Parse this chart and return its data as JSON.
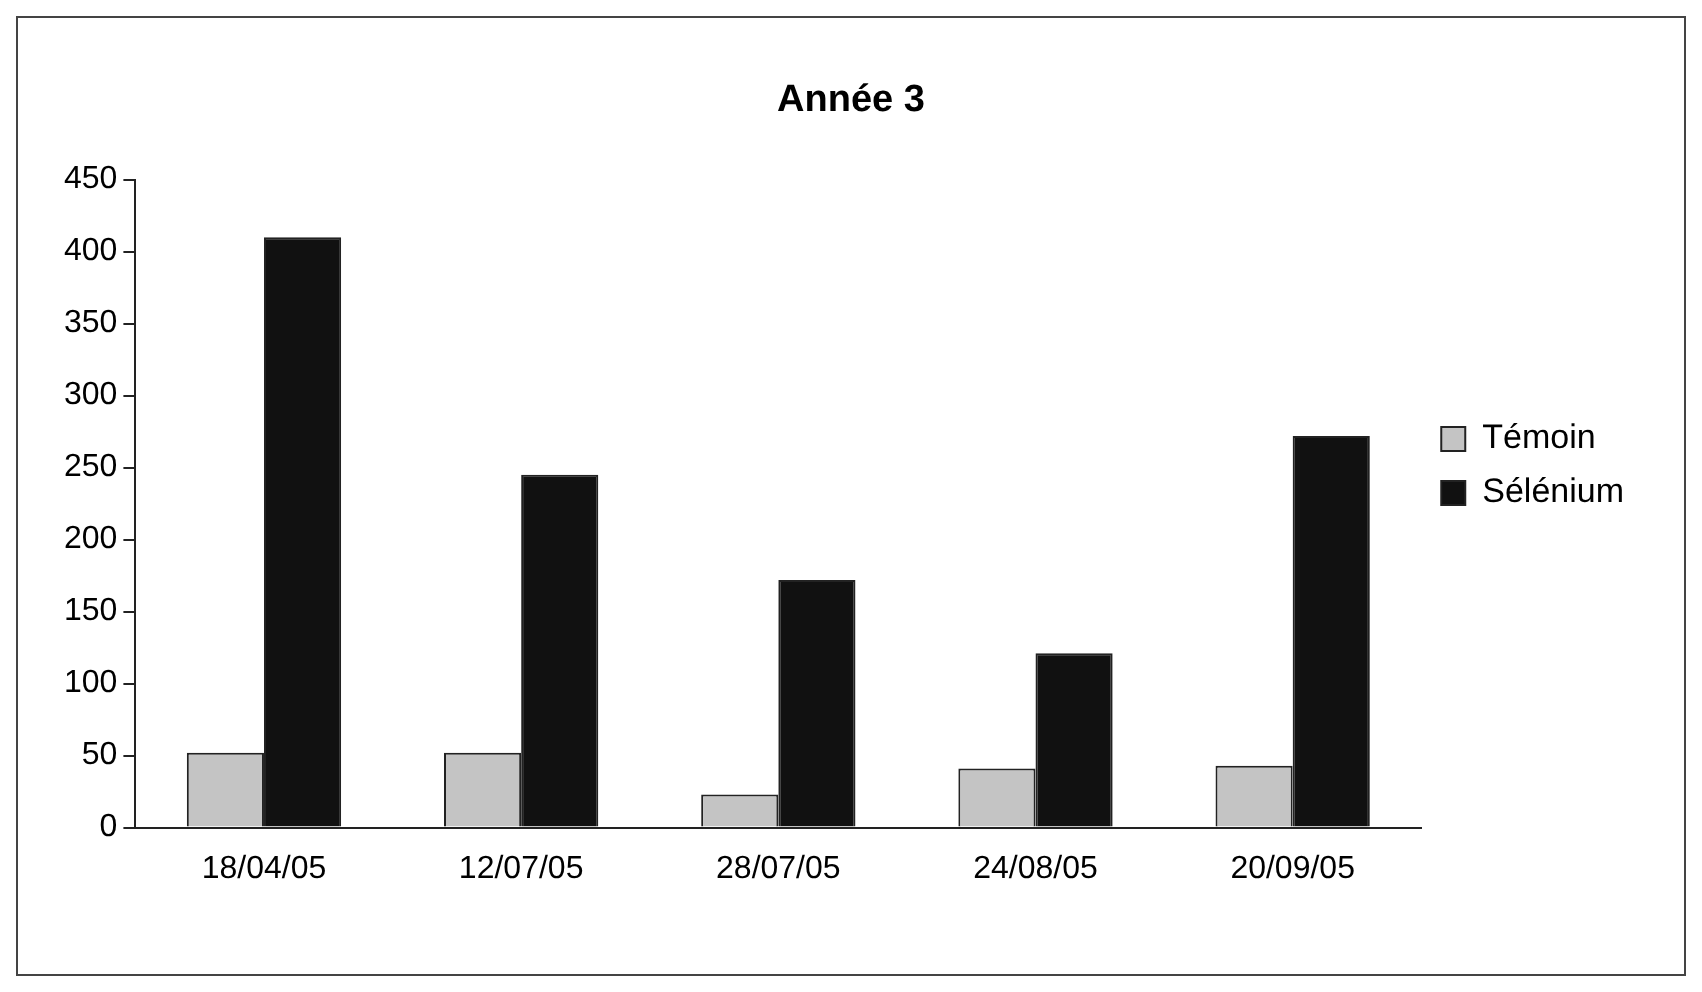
{
  "chart_data": {
    "type": "bar",
    "title": "Année 3",
    "categories": [
      "18/04/05",
      "12/07/05",
      "28/07/05",
      "24/08/05",
      "20/09/05"
    ],
    "series": [
      {
        "name": "Témoin",
        "color": "#c4c4c4",
        "values": [
          52,
          52,
          23,
          41,
          43
        ]
      },
      {
        "name": "Sélénium",
        "color": "#111111",
        "values": [
          410,
          245,
          172,
          121,
          272
        ]
      }
    ],
    "ylim": [
      0,
      450
    ],
    "yticks": [
      0,
      50,
      100,
      150,
      200,
      250,
      300,
      350,
      400,
      450
    ],
    "grid": false,
    "legend": "right"
  }
}
